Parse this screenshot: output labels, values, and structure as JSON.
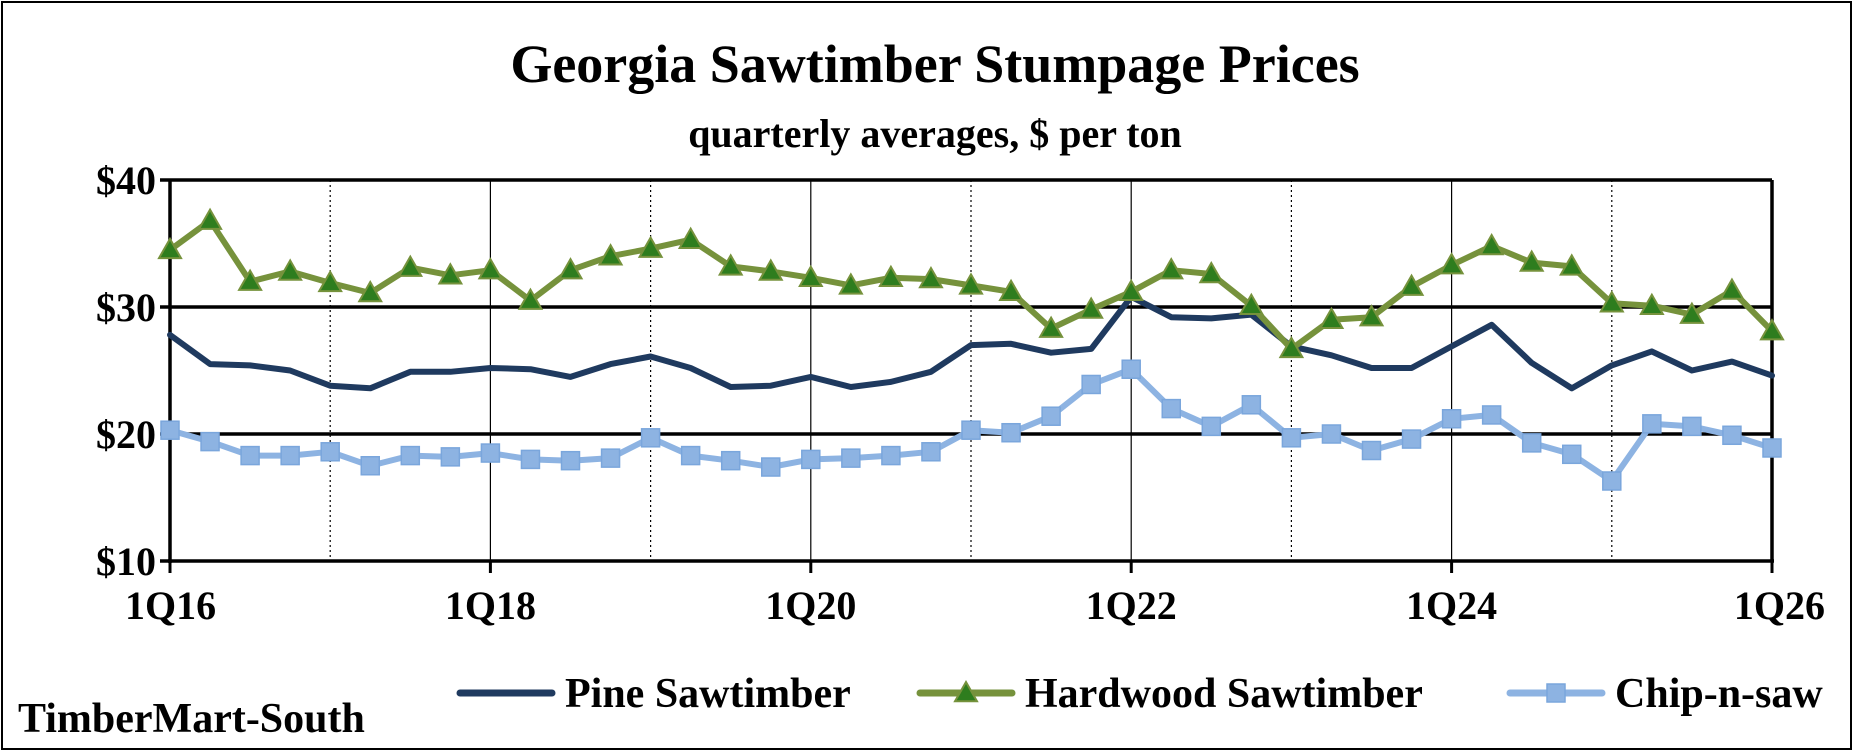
{
  "chart_data": {
    "type": "line",
    "title": "Georgia Sawtimber Stumpage Prices",
    "subtitle": "quarterly averages, $ per ton",
    "source": "TimberMart-South",
    "xlabel": "",
    "ylabel": "",
    "ylim": [
      10,
      40
    ],
    "yticks": [
      10,
      20,
      30,
      40
    ],
    "ytick_labels": [
      "$10",
      "$20",
      "$30",
      "$40"
    ],
    "xtick_labels": [
      "1Q16",
      "1Q18",
      "1Q20",
      "1Q22",
      "1Q24",
      "1Q26"
    ],
    "xtick_positions": [
      0,
      8,
      16,
      24,
      32,
      40
    ],
    "quarters": 41,
    "series": [
      {
        "name": "Pine Sawtimber",
        "color": "#1f3a5f",
        "marker": "none",
        "values": [
          27.8,
          25.5,
          25.4,
          25.0,
          23.8,
          23.6,
          24.9,
          24.9,
          25.2,
          25.1,
          24.5,
          25.5,
          26.1,
          25.2,
          23.7,
          23.8,
          24.5,
          23.7,
          24.1,
          24.9,
          27.0,
          27.1,
          26.4,
          26.7,
          30.8,
          29.2,
          29.1,
          29.4,
          26.9,
          26.2,
          25.2,
          25.2,
          26.9,
          28.6,
          25.6,
          23.6,
          25.4,
          26.5,
          25.0,
          25.7,
          24.6
        ]
      },
      {
        "name": "Hardwood Sawtimber",
        "color": "#76923c",
        "marker": "triangle",
        "marker_color": "#2e7d1e",
        "values": [
          34.5,
          36.8,
          32.0,
          32.8,
          31.9,
          31.1,
          33.1,
          32.5,
          32.9,
          30.5,
          32.9,
          34.0,
          34.6,
          35.3,
          33.2,
          32.8,
          32.3,
          31.7,
          32.3,
          32.2,
          31.7,
          31.2,
          28.3,
          29.8,
          31.2,
          32.9,
          32.6,
          30.1,
          26.7,
          29.0,
          29.2,
          31.6,
          33.3,
          34.8,
          33.5,
          33.2,
          30.3,
          30.1,
          29.4,
          31.3,
          28.1
        ]
      },
      {
        "name": "Chip-n-saw",
        "color": "#8db3e2",
        "marker": "square",
        "marker_color": "#8db3e2",
        "values": [
          20.3,
          19.4,
          18.3,
          18.3,
          18.6,
          17.5,
          18.3,
          18.2,
          18.5,
          18.0,
          17.9,
          18.1,
          19.7,
          18.3,
          17.9,
          17.4,
          18.0,
          18.1,
          18.3,
          18.6,
          20.3,
          20.1,
          21.4,
          23.9,
          25.1,
          22.0,
          20.6,
          22.3,
          19.7,
          20.0,
          18.7,
          19.6,
          21.2,
          21.5,
          19.3,
          18.4,
          16.3,
          20.8,
          20.6,
          19.9,
          18.9
        ]
      }
    ]
  }
}
